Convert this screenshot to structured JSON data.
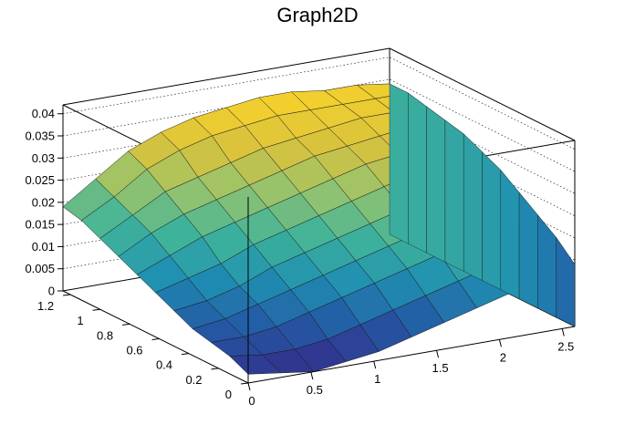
{
  "chart_data": {
    "type": "surface3d",
    "title": "Graph2D",
    "xlabel": "",
    "ylabel": "",
    "zlabel": "",
    "xlim": [
      0,
      2.6
    ],
    "ylim": [
      0,
      1.25
    ],
    "zlim": [
      0,
      0.042
    ],
    "x_ticks": [
      "0",
      "0.5",
      "1",
      "1.5",
      "2",
      "2.5"
    ],
    "y_ticks": [
      "0",
      "0.2",
      "0.4",
      "0.6",
      "0.8",
      "1",
      "1.2"
    ],
    "z_ticks": [
      "0",
      "0.005",
      "0.01",
      "0.015",
      "0.02",
      "0.025",
      "0.03",
      "0.035",
      "0.04"
    ],
    "x": [
      0.0,
      0.26,
      0.52,
      0.78,
      1.04,
      1.3,
      1.56,
      1.82,
      2.08,
      2.34,
      2.6
    ],
    "y": [
      0.0,
      0.125,
      0.25,
      0.375,
      0.5,
      0.625,
      0.75,
      0.875,
      1.0,
      1.125,
      1.25
    ],
    "z": [
      [
        0.002,
        0.001,
        0.0,
        0.001,
        0.002,
        0.004,
        0.006,
        0.008,
        0.01,
        0.013,
        0.014
      ],
      [
        0.004,
        0.003,
        0.003,
        0.004,
        0.006,
        0.008,
        0.01,
        0.012,
        0.014,
        0.016,
        0.018
      ],
      [
        0.005,
        0.005,
        0.006,
        0.008,
        0.01,
        0.012,
        0.014,
        0.016,
        0.018,
        0.02,
        0.021
      ],
      [
        0.006,
        0.007,
        0.009,
        0.011,
        0.013,
        0.015,
        0.017,
        0.019,
        0.021,
        0.023,
        0.024
      ],
      [
        0.008,
        0.009,
        0.011,
        0.014,
        0.016,
        0.018,
        0.02,
        0.022,
        0.024,
        0.026,
        0.027
      ],
      [
        0.01,
        0.012,
        0.014,
        0.017,
        0.019,
        0.021,
        0.023,
        0.025,
        0.027,
        0.028,
        0.029
      ],
      [
        0.012,
        0.015,
        0.018,
        0.02,
        0.022,
        0.024,
        0.026,
        0.028,
        0.029,
        0.03,
        0.031
      ],
      [
        0.014,
        0.018,
        0.021,
        0.023,
        0.025,
        0.027,
        0.029,
        0.03,
        0.031,
        0.032,
        0.032
      ],
      [
        0.016,
        0.02,
        0.024,
        0.026,
        0.028,
        0.03,
        0.031,
        0.032,
        0.033,
        0.033,
        0.033
      ],
      [
        0.018,
        0.022,
        0.027,
        0.03,
        0.032,
        0.033,
        0.034,
        0.034,
        0.034,
        0.034,
        0.034
      ],
      [
        0.019,
        0.024,
        0.029,
        0.032,
        0.034,
        0.035,
        0.036,
        0.036,
        0.035,
        0.035,
        0.034
      ]
    ],
    "palette": [
      "#352a87",
      "#2458a4",
      "#1f8fb2",
      "#3fb39a",
      "#93c36e",
      "#d7c23e",
      "#f8d22a",
      "#f9e14a"
    ],
    "grid": true
  }
}
